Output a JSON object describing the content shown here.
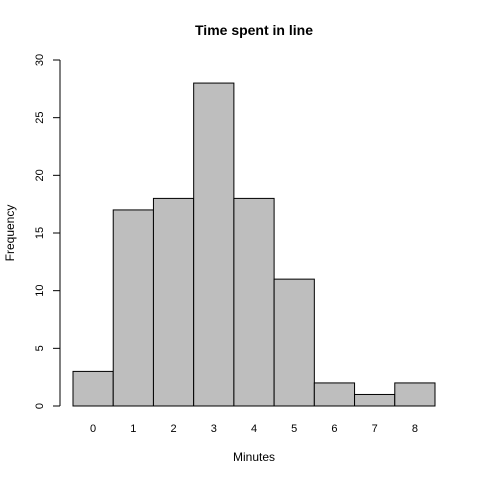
{
  "chart_data": {
    "type": "bar",
    "title": "Time spent in line",
    "xlabel": "Minutes",
    "ylabel": "Frequency",
    "categories": [
      "0",
      "1",
      "2",
      "3",
      "4",
      "5",
      "6",
      "7",
      "8"
    ],
    "values": [
      3,
      17,
      18,
      28,
      18,
      11,
      2,
      1,
      2
    ],
    "ylim": [
      0,
      30
    ],
    "yticks": [
      0,
      5,
      10,
      15,
      20,
      25,
      30
    ],
    "grid": false,
    "colors": {
      "bar_fill": "#bebebe",
      "bar_stroke": "#000000"
    }
  }
}
